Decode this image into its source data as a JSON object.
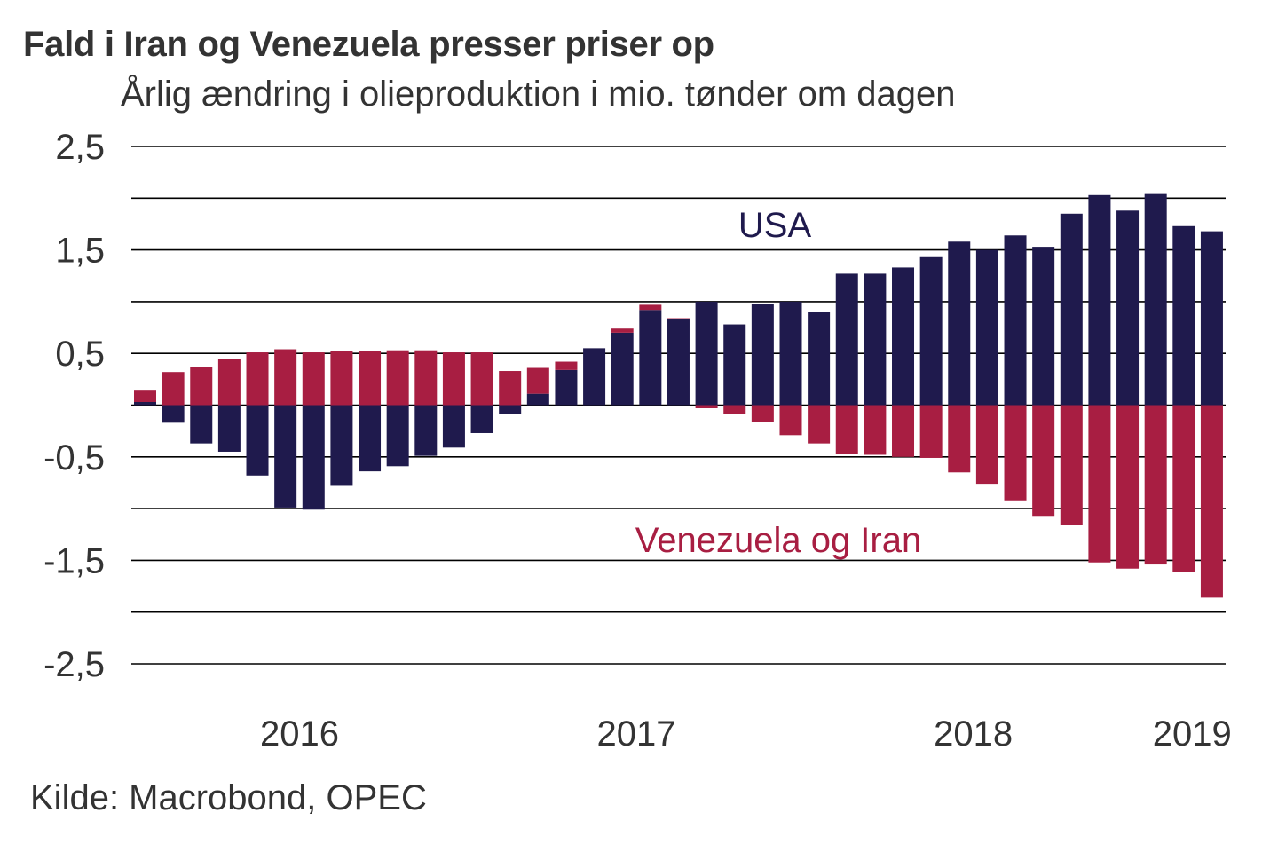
{
  "title": "Fald i Iran og Venezuela presser priser op",
  "subtitle": "Årlig ændring i olieproduktion i mio. tønder om dagen",
  "source": "Kilde: Macrobond, OPEC",
  "colors": {
    "usa": "#1F1A4D",
    "venezuela_iran": "#A81E42",
    "grid": "#000000",
    "text": "#333333"
  },
  "chart_data": {
    "type": "bar",
    "stacked": true,
    "title": "Fald i Iran og Venezuela presser priser op",
    "subtitle": "Årlig ændring i olieproduktion i mio. tønder om dagen",
    "xlabel": "",
    "ylabel": "",
    "ylim": [
      -2.5,
      2.5
    ],
    "grid_step": 0.5,
    "grid": true,
    "yticks": [
      2.5,
      1.5,
      0.5,
      -0.5,
      -1.5,
      -2.5
    ],
    "ytick_labels": [
      "2,5",
      "1,5",
      "0,5",
      "-0,5",
      "-1,5",
      "-2,5"
    ],
    "xtick_labels": [
      {
        "label": "2016",
        "at_index": 5.5
      },
      {
        "label": "2017",
        "at_index": 17.5
      },
      {
        "label": "2018",
        "at_index": 29.5
      },
      {
        "label": "2019",
        "at_index": 37.3
      }
    ],
    "categories": [
      "2016-01",
      "2016-02",
      "2016-03",
      "2016-04",
      "2016-05",
      "2016-06",
      "2016-07",
      "2016-08",
      "2016-09",
      "2016-10",
      "2016-11",
      "2016-12",
      "2017-01",
      "2017-02",
      "2017-03",
      "2017-04",
      "2017-05",
      "2017-06",
      "2017-07",
      "2017-08",
      "2017-09",
      "2017-10",
      "2017-11",
      "2017-12",
      "2018-01",
      "2018-02",
      "2018-03",
      "2018-04",
      "2018-05",
      "2018-06",
      "2018-07",
      "2018-08",
      "2018-09",
      "2018-10",
      "2018-11",
      "2018-12",
      "2019-01",
      "2019-02",
      "2019-03"
    ],
    "series": [
      {
        "name": "USA",
        "color": "#1F1A4D",
        "values": [
          0.03,
          -0.17,
          -0.37,
          -0.45,
          -0.68,
          -0.99,
          -1.01,
          -0.78,
          -0.64,
          -0.59,
          -0.49,
          -0.41,
          -0.27,
          -0.09,
          0.11,
          0.34,
          0.55,
          0.7,
          0.92,
          0.83,
          1.0,
          0.78,
          0.98,
          1.0,
          0.9,
          1.27,
          1.27,
          1.33,
          1.43,
          1.58,
          1.5,
          1.64,
          1.53,
          1.85,
          2.03,
          1.88,
          2.04,
          1.73,
          1.68
        ]
      },
      {
        "name": "Venezuela og Iran",
        "color": "#A81E42",
        "values": [
          0.11,
          0.32,
          0.37,
          0.45,
          0.51,
          0.54,
          0.51,
          0.52,
          0.52,
          0.53,
          0.53,
          0.51,
          0.51,
          0.33,
          0.25,
          0.08,
          0.0,
          0.04,
          0.05,
          0.01,
          -0.03,
          -0.09,
          -0.16,
          -0.29,
          -0.37,
          -0.47,
          -0.48,
          -0.5,
          -0.51,
          -0.65,
          -0.76,
          -0.92,
          -1.07,
          -1.16,
          -1.52,
          -1.58,
          -1.54,
          -1.61,
          -1.86
        ]
      }
    ],
    "annotations": [
      {
        "text": "USA",
        "series": "USA"
      },
      {
        "text": "Venezuela og Iran",
        "series": "Venezuela og Iran"
      }
    ],
    "legend": "none (inline annotations)"
  }
}
